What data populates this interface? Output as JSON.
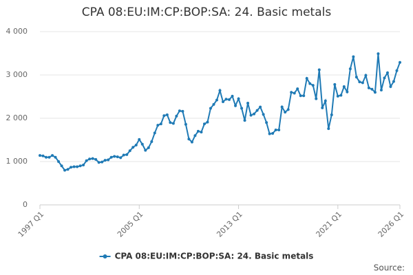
{
  "chart_data": {
    "type": "line",
    "title": "CPA 08:EU:IM:CP:BOP:SA: 24. Basic metals",
    "source": "Source:",
    "categories": [
      "1997 Q1",
      null,
      null,
      null,
      null,
      null,
      null,
      null,
      null,
      null,
      null,
      null,
      null,
      null,
      null,
      null,
      null,
      null,
      null,
      null,
      null,
      null,
      null,
      null,
      null,
      null,
      null,
      null,
      null,
      null,
      null,
      null,
      "2005 Q1",
      null,
      null,
      null,
      null,
      null,
      null,
      null,
      null,
      null,
      null,
      null,
      null,
      null,
      null,
      null,
      null,
      null,
      null,
      null,
      null,
      null,
      null,
      null,
      null,
      null,
      null,
      null,
      null,
      null,
      null,
      null,
      "2013 Q1",
      null,
      null,
      null,
      null,
      null,
      null,
      null,
      null,
      null,
      null,
      null,
      null,
      null,
      null,
      null,
      null,
      null,
      null,
      null,
      null,
      null,
      null,
      null,
      null,
      null,
      null,
      null,
      null,
      null,
      null,
      null,
      "2021 Q1",
      null,
      null,
      null,
      null,
      null,
      null,
      null,
      null,
      null,
      null,
      null,
      null,
      null,
      null,
      null,
      null,
      null,
      null,
      null,
      "2026 Q1"
    ],
    "series": [
      {
        "name": "CPA 08:EU:IM:CP:BOP:SA: 24. Basic metals",
        "color": "#1f7ab5",
        "values": [
          1140,
          1130,
          1100,
          1100,
          1140,
          1100,
          1000,
          900,
          800,
          820,
          870,
          880,
          880,
          900,
          920,
          1020,
          1060,
          1070,
          1050,
          980,
          990,
          1030,
          1040,
          1100,
          1120,
          1110,
          1090,
          1150,
          1160,
          1250,
          1330,
          1380,
          1510,
          1400,
          1260,
          1320,
          1460,
          1660,
          1840,
          1870,
          2060,
          2080,
          1900,
          1880,
          2050,
          2170,
          2160,
          1860,
          1520,
          1450,
          1600,
          1700,
          1680,
          1870,
          1910,
          2230,
          2320,
          2420,
          2640,
          2380,
          2440,
          2430,
          2510,
          2290,
          2450,
          2230,
          1950,
          2350,
          2070,
          2100,
          2180,
          2260,
          2090,
          1900,
          1640,
          1650,
          1730,
          1730,
          2260,
          2140,
          2200,
          2600,
          2580,
          2680,
          2520,
          2520,
          2920,
          2800,
          2760,
          2450,
          3120,
          2240,
          2400,
          1760,
          2080,
          2780,
          2510,
          2530,
          2730,
          2610,
          3140,
          3420,
          2950,
          2840,
          2820,
          2990,
          2700,
          2670,
          2600,
          3490,
          2650,
          2930,
          3050,
          2730,
          2850,
          3100,
          3290
        ]
      }
    ],
    "ylim": [
      0,
      4000
    ],
    "yticks": [
      0,
      {
        "value": 1000,
        "label": "1 000"
      },
      {
        "value": 2000,
        "label": "2 000"
      },
      {
        "value": 3000,
        "label": "3 000"
      },
      {
        "value": 4000,
        "label": "4 000"
      }
    ],
    "grid": true,
    "legend": "bottom"
  }
}
